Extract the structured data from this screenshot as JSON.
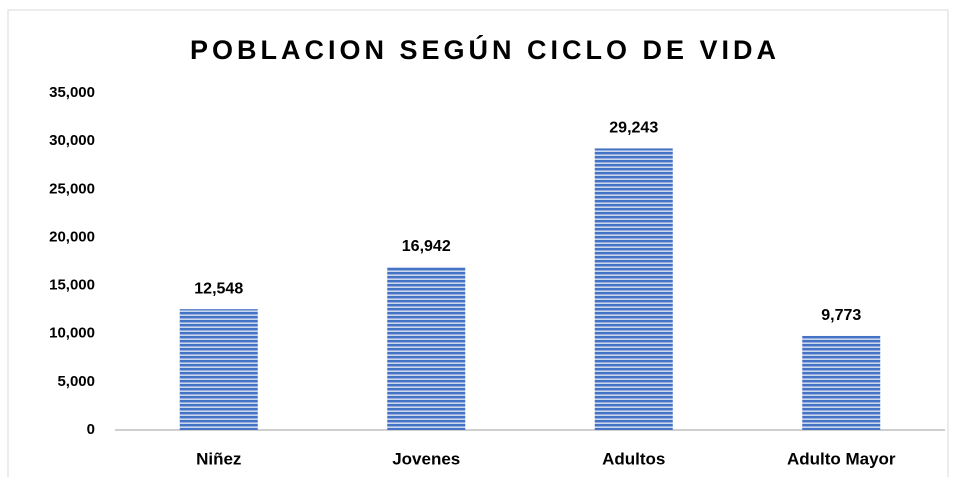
{
  "chart_data": {
    "type": "bar",
    "title": "POBLACION SEGÚN CICLO DE VIDA",
    "categories": [
      "Niñez",
      "Jovenes",
      "Adultos",
      "Adulto Mayor"
    ],
    "values": [
      12548,
      16942,
      29243,
      9773
    ],
    "value_labels": [
      "12,548",
      "16,942",
      "29,243",
      "9,773"
    ],
    "color": "#4472c4",
    "ylim": [
      0,
      35000
    ],
    "yticks": [
      0,
      {
        "value": 5000,
        "label": "5,000"
      },
      {
        "value": 10000,
        "label": "10,000"
      },
      {
        "value": 15000,
        "label": "15,000"
      },
      {
        "value": 20000,
        "label": "20,000"
      },
      {
        "value": 25000,
        "label": "25,000"
      },
      {
        "value": 30000,
        "label": "30,000"
      },
      {
        "value": 35000,
        "label": "35,000"
      }
    ],
    "grid": false
  }
}
